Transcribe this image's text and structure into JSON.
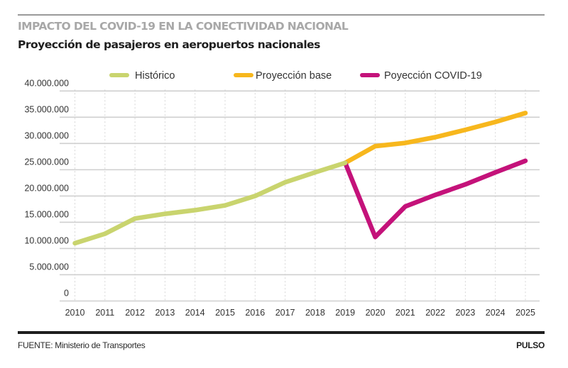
{
  "header": {
    "kicker": "IMPACTO DEL COVID-19 EN LA CONECTIVIDAD NACIONAL",
    "title": "Proyección de pasajeros en aeropuertos nacionales"
  },
  "footer": {
    "source": "FUENTE: Ministerio de Transportes",
    "brand": "PULSO"
  },
  "chart_data": {
    "type": "line",
    "title": "Proyección de pasajeros en aeropuertos nacionales",
    "xlabel": "",
    "ylabel": "",
    "ylim": [
      0,
      40000000
    ],
    "yticks": [
      0,
      5000000,
      10000000,
      15000000,
      20000000,
      25000000,
      30000000,
      35000000,
      40000000
    ],
    "ytick_labels": [
      "0",
      "5.000.000",
      "10.000.000",
      "15.000.000",
      "20.000.000",
      "25.000.000",
      "30.000.000",
      "35.000.000",
      "40.000.000"
    ],
    "x": [
      2010,
      2011,
      2012,
      2013,
      2014,
      2015,
      2016,
      2017,
      2018,
      2019,
      2020,
      2021,
      2022,
      2023,
      2024,
      2025
    ],
    "xtick_labels": [
      "2010",
      "2011",
      "2012",
      "2013",
      "2014",
      "2015",
      "2016",
      "2017",
      "2018",
      "2019",
      "2020",
      "2021",
      "2022",
      "2023",
      "2024",
      "2025"
    ],
    "grid": {
      "horizontal": true,
      "vertical": "dotted"
    },
    "legend": {
      "position": "top",
      "orientation": "horizontal"
    },
    "series": [
      {
        "name": "Histórico",
        "color": "#c9d46e",
        "x": [
          2010,
          2011,
          2012,
          2013,
          2014,
          2015,
          2016,
          2017,
          2018,
          2019
        ],
        "values": [
          11000000,
          12800000,
          15700000,
          16600000,
          17300000,
          18200000,
          20000000,
          22600000,
          24500000,
          26300000
        ]
      },
      {
        "name": "Proyección base",
        "color": "#f7b71d",
        "x": [
          2019,
          2020,
          2021,
          2022,
          2023,
          2024,
          2025
        ],
        "values": [
          26300000,
          29500000,
          30100000,
          31200000,
          32600000,
          34100000,
          35800000
        ]
      },
      {
        "name": "Poyección COVID-19",
        "color": "#c4127a",
        "x": [
          2019,
          2020,
          2021,
          2022,
          2023,
          2024,
          2025
        ],
        "values": [
          26300000,
          12200000,
          18000000,
          20200000,
          22200000,
          24500000,
          26700000
        ]
      }
    ]
  }
}
